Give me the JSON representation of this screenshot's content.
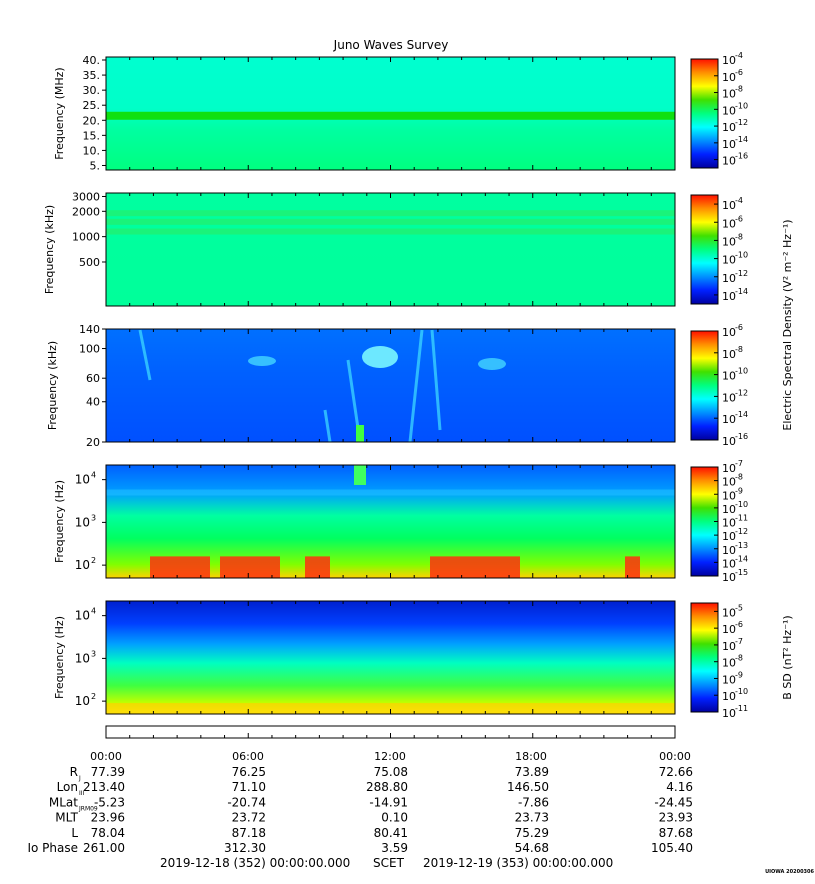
{
  "title": "Juno Waves Survey",
  "chart_data": [
    {
      "type": "heatmap",
      "ylabel": "Frequency (MHz)",
      "yticks": [
        "40.",
        "35.",
        "30.",
        "25.",
        "20.",
        "15.",
        "10.",
        "5."
      ],
      "ytick_values": [
        40,
        35,
        30,
        25,
        20,
        15,
        10,
        5
      ],
      "ylim": [
        3.5,
        41
      ],
      "log_y": false,
      "colorbar_exponents": [
        "-4",
        "-6",
        "-8",
        "-10",
        "-12",
        "-14",
        "-16"
      ],
      "colorbar_range": [
        -17,
        -4
      ],
      "colorbar_label": ""
    },
    {
      "type": "heatmap",
      "ylabel": "Frequency (kHz)",
      "yticks": [
        "3000",
        "2000",
        "1000",
        "500"
      ],
      "ytick_values": [
        3000,
        2000,
        1000,
        500
      ],
      "ylim": [
        150,
        3300
      ],
      "log_y": true,
      "colorbar_exponents": [
        "-4",
        "-6",
        "-8",
        "-10",
        "-12",
        "-14"
      ],
      "colorbar_range": [
        -15,
        -3
      ],
      "colorbar_label": "Electric Spectral Density (V² m⁻² Hz⁻¹)"
    },
    {
      "type": "heatmap",
      "ylabel": "Frequency (kHz)",
      "yticks": [
        "140",
        "100",
        "60",
        "40",
        "20"
      ],
      "ytick_values": [
        140,
        100,
        60,
        40,
        20
      ],
      "ylim": [
        20,
        140
      ],
      "log_y": true,
      "colorbar_exponents": [
        "-6",
        "-8",
        "-10",
        "-12",
        "-14",
        "-16"
      ],
      "colorbar_range": [
        -16,
        -6
      ],
      "colorbar_label": ""
    },
    {
      "type": "heatmap",
      "ylabel": "Frequency (Hz)",
      "yticks": [
        "10",
        "10",
        "10"
      ],
      "ytick_exponents": [
        "4",
        "3",
        "2"
      ],
      "ytick_values": [
        10000,
        1000,
        100
      ],
      "ylim": [
        50,
        22000
      ],
      "log_y": true,
      "colorbar_exponents": [
        "-7",
        "-8",
        "-9",
        "-10",
        "-11",
        "-12",
        "-13",
        "-14",
        "-15"
      ],
      "colorbar_range": [
        -15,
        -7
      ],
      "colorbar_label": ""
    },
    {
      "type": "heatmap",
      "ylabel": "Frequency (Hz)",
      "yticks": [
        "10",
        "10",
        "10"
      ],
      "ytick_exponents": [
        "4",
        "3",
        "2"
      ],
      "ytick_values": [
        10000,
        1000,
        100
      ],
      "ylim": [
        50,
        22000
      ],
      "log_y": true,
      "colorbar_exponents": [
        "-5",
        "-6",
        "-7",
        "-8",
        "-9",
        "-10",
        "-11"
      ],
      "colorbar_range": [
        -11,
        -4.5
      ],
      "colorbar_label": "B SD (nT² Hz⁻¹)"
    }
  ],
  "time_axis": {
    "labels": [
      "00:00",
      "06:00",
      "12:00",
      "18:00",
      "00:00"
    ],
    "rows": [
      {
        "label": "R",
        "sub": "J",
        "values": [
          "77.39",
          "76.25",
          "75.08",
          "73.89",
          "72.66"
        ]
      },
      {
        "label": "Lon",
        "sub": "III",
        "values": [
          "213.40",
          "71.10",
          "288.80",
          "146.50",
          "4.16"
        ]
      },
      {
        "label": "MLat",
        "sub": "JRM09",
        "values": [
          "-5.23",
          "-20.74",
          "-14.91",
          "-7.86",
          "-24.45"
        ]
      },
      {
        "label": "MLT",
        "sub": "",
        "values": [
          "23.96",
          "23.72",
          "0.10",
          "23.73",
          "23.93"
        ]
      },
      {
        "label": "L",
        "sub": "",
        "values": [
          "78.04",
          "87.18",
          "80.41",
          "75.29",
          "87.68"
        ]
      },
      {
        "label": "Io Phase",
        "sub": "",
        "values": [
          "261.00",
          "312.30",
          "3.59",
          "54.68",
          "105.40"
        ]
      }
    ],
    "footer_start": "2019-12-18 (352) 00:00:00.000",
    "footer_mid": "SCET",
    "footer_end": "2019-12-19 (353) 00:00:00.000"
  },
  "stamp": "UIOWA 20200306",
  "colors": {
    "scale": [
      "#0000a0",
      "#0020ff",
      "#0090ff",
      "#00ffff",
      "#00ff80",
      "#40e000",
      "#ffff00",
      "#ff9000",
      "#ff1000"
    ]
  }
}
